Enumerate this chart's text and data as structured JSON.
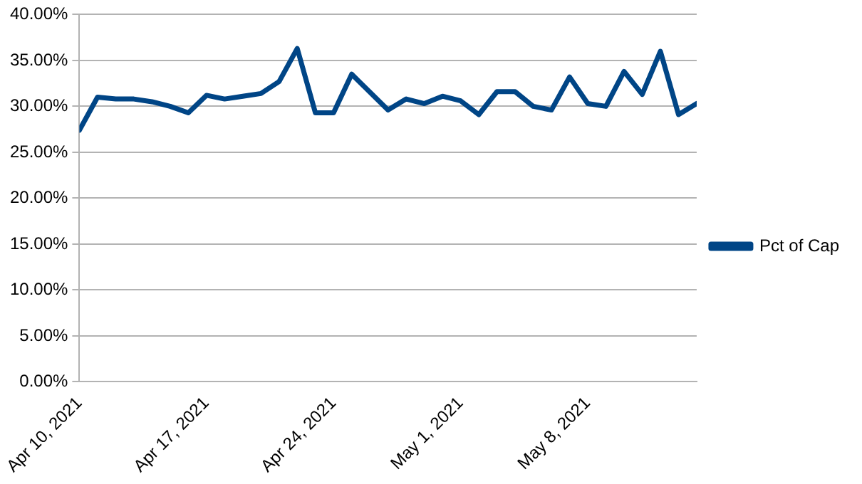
{
  "chart_data": {
    "type": "line",
    "legend": "right",
    "grid": "y",
    "marker": "none",
    "line_style": "solid",
    "x": [
      "2021-04-10",
      "2021-04-11",
      "2021-04-12",
      "2021-04-13",
      "2021-04-14",
      "2021-04-15",
      "2021-04-16",
      "2021-04-17",
      "2021-04-18",
      "2021-04-19",
      "2021-04-20",
      "2021-04-21",
      "2021-04-22",
      "2021-04-23",
      "2021-04-24",
      "2021-04-25",
      "2021-04-27",
      "2021-04-28",
      "2021-04-29",
      "2021-04-30",
      "2021-05-01",
      "2021-05-02",
      "2021-05-03",
      "2021-05-04",
      "2021-05-05",
      "2021-05-06",
      "2021-05-07",
      "2021-05-08",
      "2021-05-09",
      "2021-05-10",
      "2021-05-11",
      "2021-05-12",
      "2021-05-13",
      "2021-05-14"
    ],
    "series": [
      {
        "name": "Pct of Cap",
        "color": "#004586",
        "values": [
          27.4,
          31.0,
          30.8,
          30.8,
          30.5,
          30.0,
          29.3,
          31.2,
          30.8,
          31.1,
          31.4,
          32.7,
          36.3,
          29.3,
          29.3,
          33.5,
          29.6,
          30.8,
          30.3,
          31.1,
          30.6,
          29.1,
          31.6,
          31.6,
          30.0,
          29.6,
          33.2,
          30.3,
          30.0,
          33.8,
          31.3,
          36.0,
          29.1,
          30.3
        ]
      }
    ],
    "xlim": [
      "2021-04-10",
      "2021-05-14"
    ],
    "xticks": [
      {
        "value": "2021-04-10",
        "label": "Apr 10, 2021"
      },
      {
        "value": "2021-04-17",
        "label": "Apr 17, 2021"
      },
      {
        "value": "2021-04-24",
        "label": "Apr 24, 2021"
      },
      {
        "value": "2021-05-01",
        "label": "May 1, 2021"
      },
      {
        "value": "2021-05-08",
        "label": "May 8, 2021"
      }
    ],
    "ylim": [
      0,
      40
    ],
    "yticks": [
      {
        "value": 0,
        "label": "0.00%"
      },
      {
        "value": 5,
        "label": "5.00%"
      },
      {
        "value": 10,
        "label": "10.00%"
      },
      {
        "value": 15,
        "label": "15.00%"
      },
      {
        "value": 20,
        "label": "20.00%"
      },
      {
        "value": 25,
        "label": "25.00%"
      },
      {
        "value": 30,
        "label": "30.00%"
      },
      {
        "value": 35,
        "label": "35.00%"
      },
      {
        "value": 40,
        "label": "40.00%"
      }
    ]
  }
}
